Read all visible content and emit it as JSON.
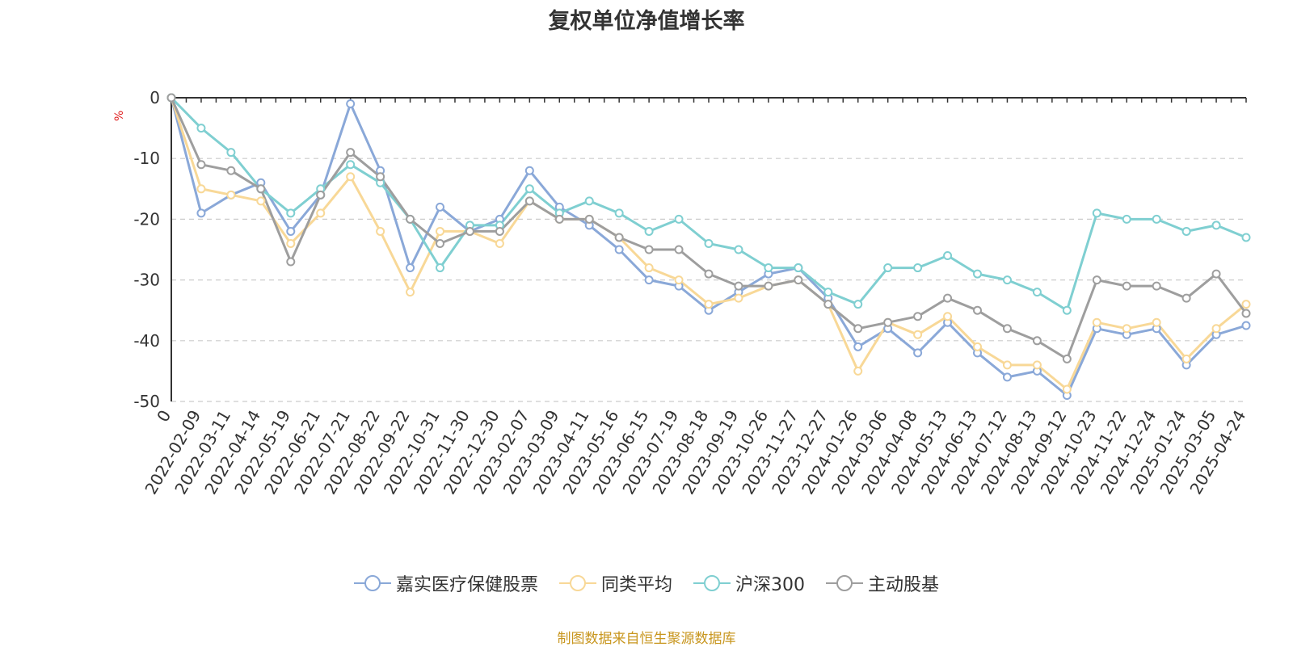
{
  "title": "复权单位净值增长率",
  "source_note": "制图数据来自恒生聚源数据库",
  "chart_data": {
    "type": "line",
    "ylabel": "%",
    "ylim": [
      -50,
      0
    ],
    "yticks": [
      0,
      -10,
      -20,
      -30,
      -40,
      -50
    ],
    "grid": "horizontal-dashed",
    "legend_position": "bottom",
    "x_ticks": [
      "0",
      "2022-02-09",
      "2022-03-11",
      "2022-04-14",
      "2022-05-19",
      "2022-06-21",
      "2022-07-21",
      "2022-08-22",
      "2022-09-22",
      "2022-10-31",
      "2022-11-30",
      "2022-12-30",
      "2023-02-07",
      "2023-03-09",
      "2023-04-11",
      "2023-05-16",
      "2023-06-15",
      "2023-07-19",
      "2023-08-18",
      "2023-09-19",
      "2023-10-26",
      "2023-11-27",
      "2023-12-27",
      "2024-01-26",
      "2024-03-06",
      "2024-04-08",
      "2024-05-13",
      "2024-06-13",
      "2024-07-12",
      "2024-08-13",
      "2024-09-12",
      "2024-10-23",
      "2024-11-22",
      "2024-12-24",
      "2025-01-24",
      "2025-03-05",
      "2025-04-24"
    ],
    "x": [
      "0",
      "2022-02-09",
      "2022-03-11",
      "2022-04-14",
      "2022-05-19",
      "2022-06-21",
      "2022-07-21",
      "2022-08-22",
      "2022-09-22",
      "2022-10-31",
      "2022-11-30",
      "2022-12-30",
      "2023-02-07",
      "2023-03-09",
      "2023-04-11",
      "2023-05-16",
      "2023-06-15",
      "2023-07-19",
      "2023-08-18",
      "2023-09-19",
      "2023-10-26",
      "2023-11-27",
      "2023-12-27",
      "2024-01-26",
      "2024-03-06",
      "2024-04-08",
      "2024-05-13",
      "2024-06-13",
      "2024-07-12",
      "2024-08-13",
      "2024-09-12",
      "2024-10-23",
      "2024-11-22",
      "2024-12-24",
      "2025-01-24",
      "2025-03-05",
      "2025-04-24"
    ],
    "series": [
      {
        "name": "嘉实医疗保健股票",
        "color": "#8aa8d8",
        "values": [
          0,
          -19,
          -16,
          -14,
          -22,
          -16,
          -1,
          -12,
          -28,
          -18,
          -22,
          -20,
          -12,
          -18,
          -21,
          -25,
          -30,
          -31,
          -35,
          -32,
          -29,
          -28,
          -33,
          -41,
          -38,
          -42,
          -37,
          -42,
          -46,
          -45,
          -49,
          -38,
          -39,
          -38,
          -44,
          -39,
          -37.5
        ]
      },
      {
        "name": "同类平均",
        "color": "#f8d897",
        "values": [
          0,
          -15,
          -16,
          -17,
          -24,
          -19,
          -13,
          -22,
          -32,
          -22,
          -22,
          -24,
          -17,
          -20,
          -20,
          -23,
          -28,
          -30,
          -34,
          -33,
          -31,
          -30,
          -34,
          -45,
          -37,
          -39,
          -36,
          -41,
          -44,
          -44,
          -48,
          -37,
          -38,
          -37,
          -43,
          -38,
          -34
        ]
      },
      {
        "name": "沪深300",
        "color": "#7fcfd1",
        "values": [
          0,
          -5,
          -9,
          -15,
          -19,
          -15,
          -11,
          -14,
          -20,
          -28,
          -21,
          -21,
          -15,
          -19,
          -17,
          -19,
          -22,
          -20,
          -24,
          -25,
          -28,
          -28,
          -32,
          -34,
          -28,
          -28,
          -26,
          -29,
          -30,
          -32,
          -35,
          -19,
          -20,
          -20,
          -22,
          -21,
          -23
        ]
      },
      {
        "name": "主动股基",
        "color": "#9e9e9e",
        "values": [
          0,
          -11,
          -12,
          -15,
          -27,
          -16,
          -9,
          -13,
          -20,
          -24,
          -22,
          -22,
          -17,
          -20,
          -20,
          -23,
          -25,
          -25,
          -29,
          -31,
          -31,
          -30,
          -34,
          -38,
          -37,
          -36,
          -33,
          -35,
          -38,
          -40,
          -43,
          -30,
          -31,
          -31,
          -33,
          -29,
          -35.5
        ]
      }
    ]
  }
}
